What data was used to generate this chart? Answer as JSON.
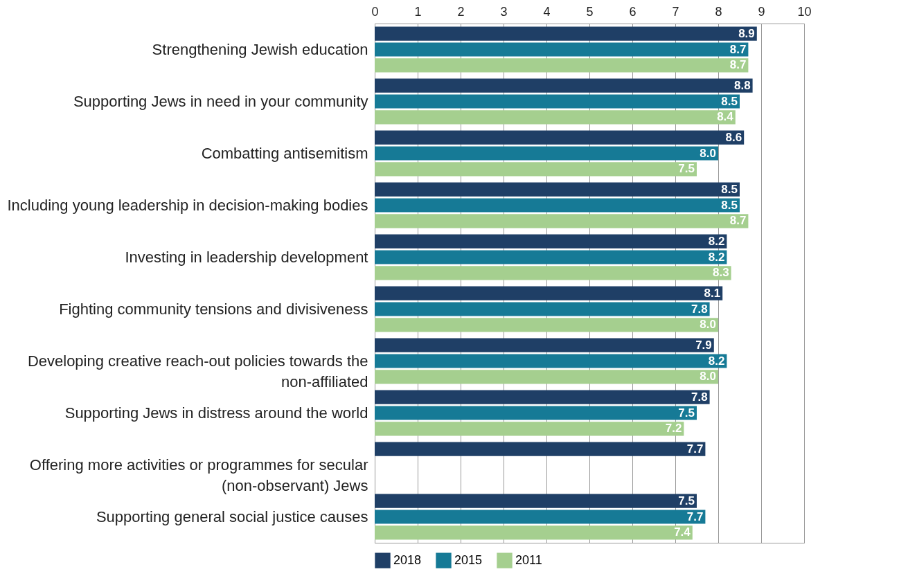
{
  "chart_data": {
    "type": "bar",
    "orientation": "horizontal",
    "categories": [
      "Strengthening Jewish education",
      "Supporting Jews in need in your community",
      "Combatting antisemitism",
      "Including young leadership in decision-making bodies",
      "Investing in leadership development",
      "Fighting community tensions and divisiveness",
      "Developing creative reach-out policies towards the non-affiliated",
      "Supporting Jews in distress around the world",
      "Offering more activities or programmes for secular (non-observant) Jews",
      "Supporting general social justice causes"
    ],
    "series": [
      {
        "name": "2018",
        "color": "#1f3f66",
        "values": [
          8.9,
          8.8,
          8.6,
          8.5,
          8.2,
          8.1,
          7.9,
          7.8,
          7.7,
          7.5
        ],
        "value_labels": [
          "8.9",
          "8.8",
          "8.6",
          "8.5",
          "8.2",
          "8.1",
          "7.9",
          "7.8",
          "7.7",
          "7.5"
        ]
      },
      {
        "name": "2015",
        "color": "#167a96",
        "values": [
          8.7,
          8.5,
          8.0,
          8.5,
          8.2,
          7.8,
          8.2,
          7.5,
          null,
          7.7
        ],
        "value_labels": [
          "8.7",
          "8.5",
          "8.0",
          "8.5",
          "8.2",
          "7.8",
          "8.2",
          "7.5",
          null,
          "7.7"
        ]
      },
      {
        "name": "2011",
        "color": "#a5cf8f",
        "values": [
          8.7,
          8.4,
          7.5,
          8.7,
          8.3,
          8.0,
          8.0,
          7.2,
          null,
          7.4
        ],
        "value_labels": [
          "8.7",
          "8.4",
          "7.5",
          "8.7",
          "8.3",
          "8.0",
          "8.0",
          "7.2",
          null,
          "7.4"
        ]
      }
    ],
    "xlim": [
      0,
      10
    ],
    "xticks": [
      0,
      1,
      2,
      3,
      4,
      5,
      6,
      7,
      8,
      9,
      10
    ],
    "grid": "x",
    "legend": "bottom"
  }
}
